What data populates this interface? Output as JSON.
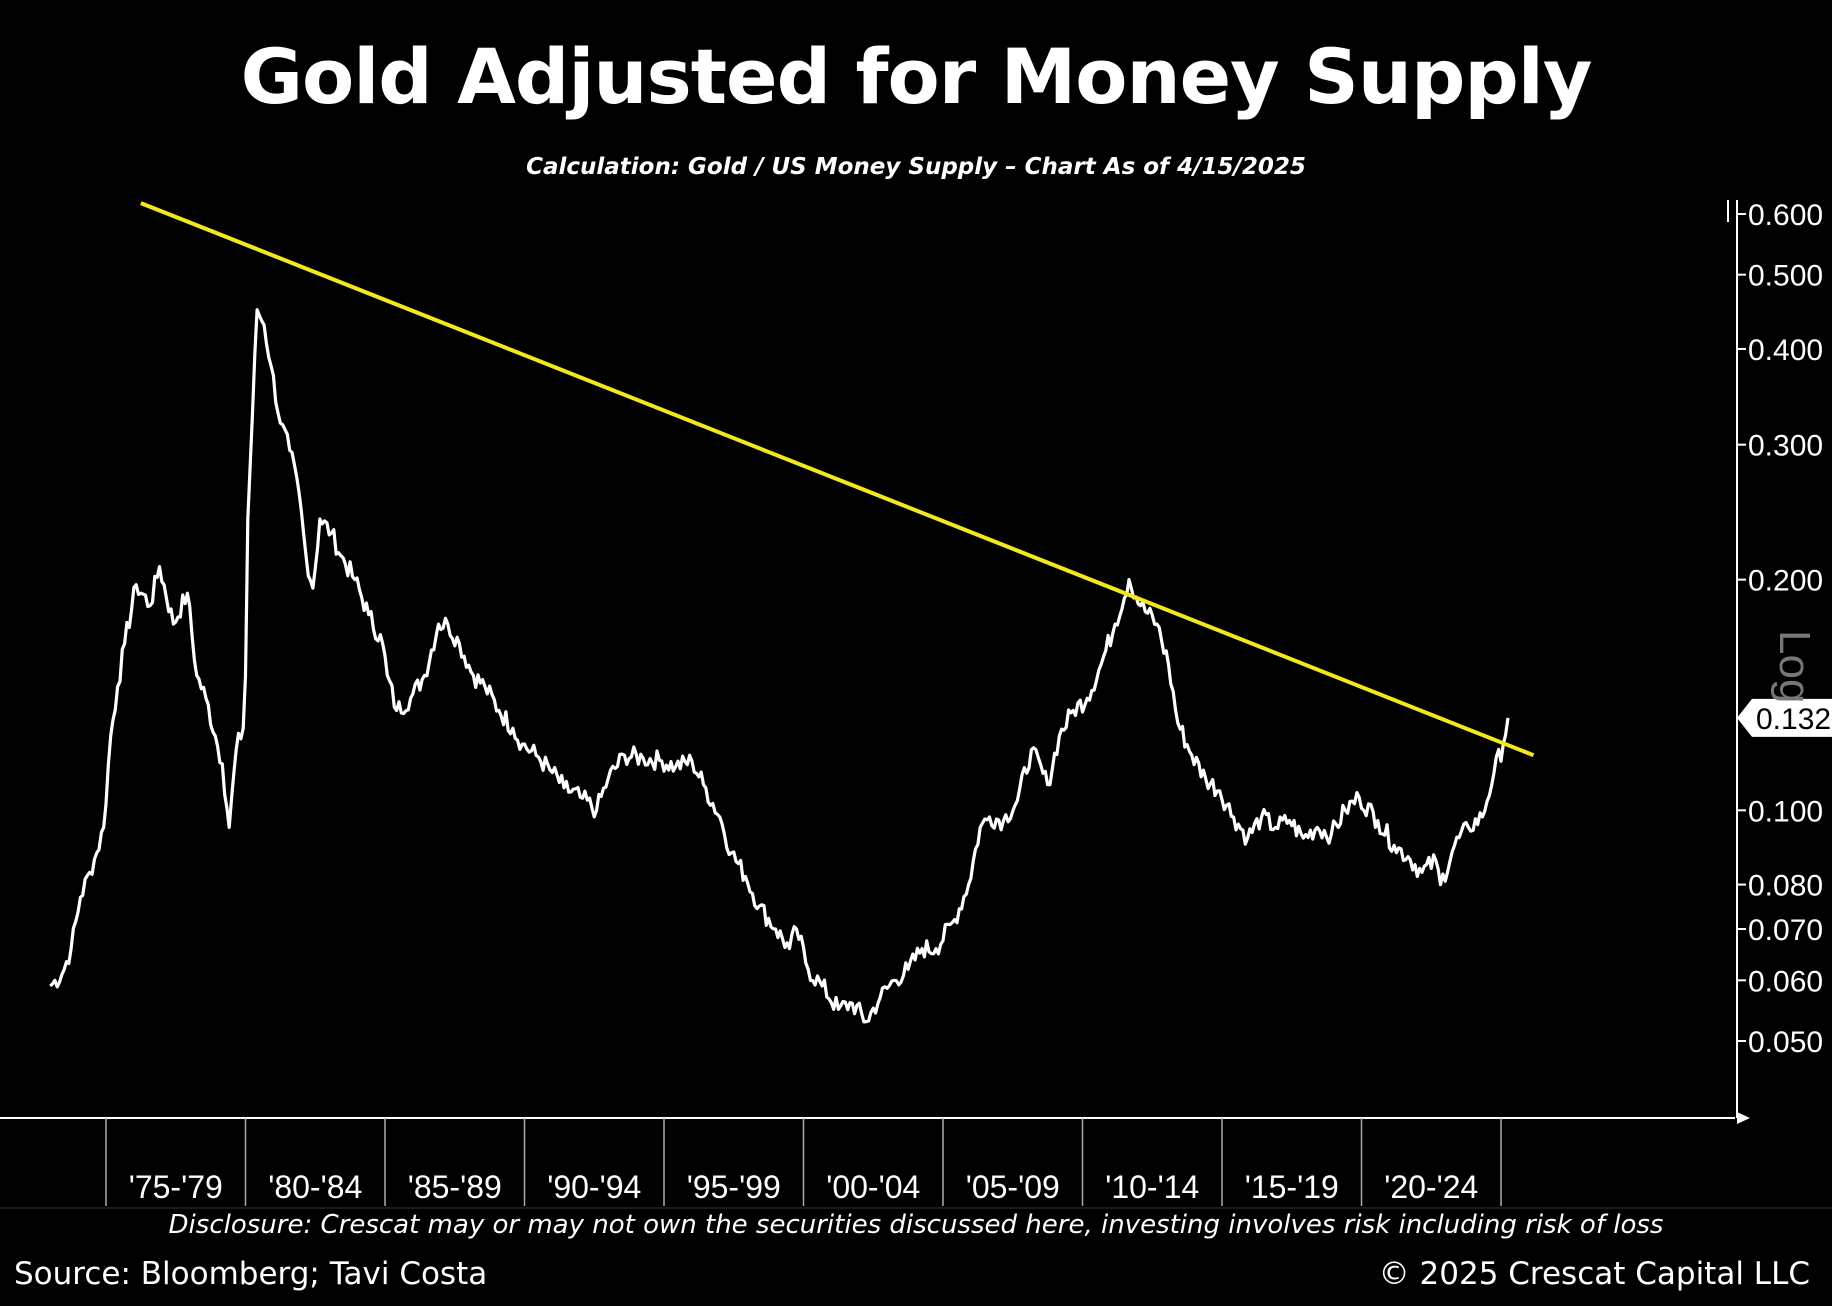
{
  "title": "Gold Adjusted for Money Supply",
  "subtitle": "Calculation: Gold / US Money Supply – Chart As of 4/15/2025",
  "disclosure": "Disclosure: Crescat may or may not own the securities discussed here, investing involves risk including risk of loss",
  "source": "Source: Bloomberg; Tavi Costa",
  "copyright": "© 2025 Crescat Capital LLC",
  "colors": {
    "background": "#000000",
    "series": "#ffffff",
    "trendline": "#f2e81a",
    "axis": "#ffffff"
  },
  "chart_data": {
    "type": "line",
    "title": "Gold Adjusted for Money Supply",
    "subtitle": "Calculation: Gold / US Money Supply – Chart As of 4/15/2025",
    "y_scale": "log",
    "y_scale_label": "Log",
    "ylim": [
      0.043,
      0.62
    ],
    "xlim": [
      "1973-01",
      "2026-06"
    ],
    "y_ticks": [
      0.6,
      0.5,
      0.4,
      0.3,
      0.2,
      0.1,
      0.08,
      0.07,
      0.06,
      0.05
    ],
    "y_tick_labels": [
      "0.600",
      "0.500",
      "0.400",
      "0.300",
      "0.200",
      "0.100",
      "0.080",
      "0.070",
      "0.060",
      "0.050"
    ],
    "x_tick_labels": [
      "'75-'79",
      "'80-'84",
      "'85-'89",
      "'90-'94",
      "'95-'99",
      "'00-'04",
      "'05-'09",
      "'10-'14",
      "'15-'19",
      "'20-'24"
    ],
    "last_value": 0.132,
    "last_value_label": "0.132",
    "series": [
      {
        "x": [
          "1973-01",
          "1973-06",
          "1973-10",
          "1974-02",
          "1974-06",
          "1974-09",
          "1974-12",
          "1975-03",
          "1975-06",
          "1975-09",
          "1976-02",
          "1976-08",
          "1976-12",
          "1977-06",
          "1977-12",
          "1978-04",
          "1978-08",
          "1978-12",
          "1979-03",
          "1979-06",
          "1979-09",
          "1979-12",
          "1980-01",
          "1980-02",
          "1980-04",
          "1980-06",
          "1980-09",
          "1980-12",
          "1981-04",
          "1981-08",
          "1981-12",
          "1982-03",
          "1982-06",
          "1982-09",
          "1983-02",
          "1983-06",
          "1983-12",
          "1984-06",
          "1984-12",
          "1985-02",
          "1985-06",
          "1985-12",
          "1986-06",
          "1986-12",
          "1987-04",
          "1987-09",
          "1988-03",
          "1988-08",
          "1989-02",
          "1989-08",
          "1989-12",
          "1990-06",
          "1991-01",
          "1991-06",
          "1992-01",
          "1992-08",
          "1993-01",
          "1993-08",
          "1994-04",
          "1994-12",
          "1995-06",
          "1996-01",
          "1996-06",
          "1997-01",
          "1997-06",
          "1997-12",
          "1998-06",
          "1999-01",
          "1999-07",
          "1999-10",
          "2000-03",
          "2000-09",
          "2001-04",
          "2001-10",
          "2002-04",
          "2002-10",
          "2003-04",
          "2003-10",
          "2004-04",
          "2004-10",
          "2005-06",
          "2005-12",
          "2006-05",
          "2006-09",
          "2007-03",
          "2007-09",
          "2008-03",
          "2008-10",
          "2009-03",
          "2009-09",
          "2010-03",
          "2010-09",
          "2011-03",
          "2011-09",
          "2012-02",
          "2012-09",
          "2013-02",
          "2013-06",
          "2013-12",
          "2014-06",
          "2014-12",
          "2015-06",
          "2015-12",
          "2016-06",
          "2016-12",
          "2017-06",
          "2017-12",
          "2018-06",
          "2018-12",
          "2019-06",
          "2019-12",
          "2020-08",
          "2021-03",
          "2021-09",
          "2022-03",
          "2022-09",
          "2022-11",
          "2023-05",
          "2023-11",
          "2024-05",
          "2024-10",
          "2025-02",
          "2025-04"
        ],
        "y": [
          0.059,
          0.061,
          0.066,
          0.077,
          0.083,
          0.088,
          0.095,
          0.125,
          0.145,
          0.165,
          0.197,
          0.185,
          0.208,
          0.175,
          0.192,
          0.15,
          0.14,
          0.125,
          0.115,
          0.095,
          0.12,
          0.128,
          0.15,
          0.24,
          0.33,
          0.45,
          0.43,
          0.38,
          0.32,
          0.295,
          0.26,
          0.215,
          0.195,
          0.24,
          0.23,
          0.215,
          0.2,
          0.18,
          0.165,
          0.15,
          0.135,
          0.14,
          0.15,
          0.175,
          0.175,
          0.165,
          0.15,
          0.145,
          0.135,
          0.128,
          0.122,
          0.118,
          0.112,
          0.107,
          0.104,
          0.1,
          0.11,
          0.118,
          0.117,
          0.116,
          0.114,
          0.116,
          0.108,
          0.098,
          0.088,
          0.082,
          0.075,
          0.07,
          0.066,
          0.07,
          0.062,
          0.059,
          0.055,
          0.056,
          0.053,
          0.057,
          0.06,
          0.062,
          0.066,
          0.066,
          0.072,
          0.08,
          0.095,
          0.098,
          0.097,
          0.103,
          0.12,
          0.108,
          0.125,
          0.135,
          0.14,
          0.155,
          0.175,
          0.2,
          0.185,
          0.175,
          0.155,
          0.13,
          0.118,
          0.11,
          0.106,
          0.098,
          0.092,
          0.098,
          0.095,
          0.097,
          0.092,
          0.095,
          0.093,
          0.1,
          0.104,
          0.097,
          0.09,
          0.087,
          0.083,
          0.086,
          0.08,
          0.09,
          0.095,
          0.098,
          0.112,
          0.122,
          0.132
        ]
      }
    ],
    "trendline": {
      "x": [
        "1976-04",
        "2026-03"
      ],
      "y": [
        0.62,
        0.118
      ]
    }
  }
}
